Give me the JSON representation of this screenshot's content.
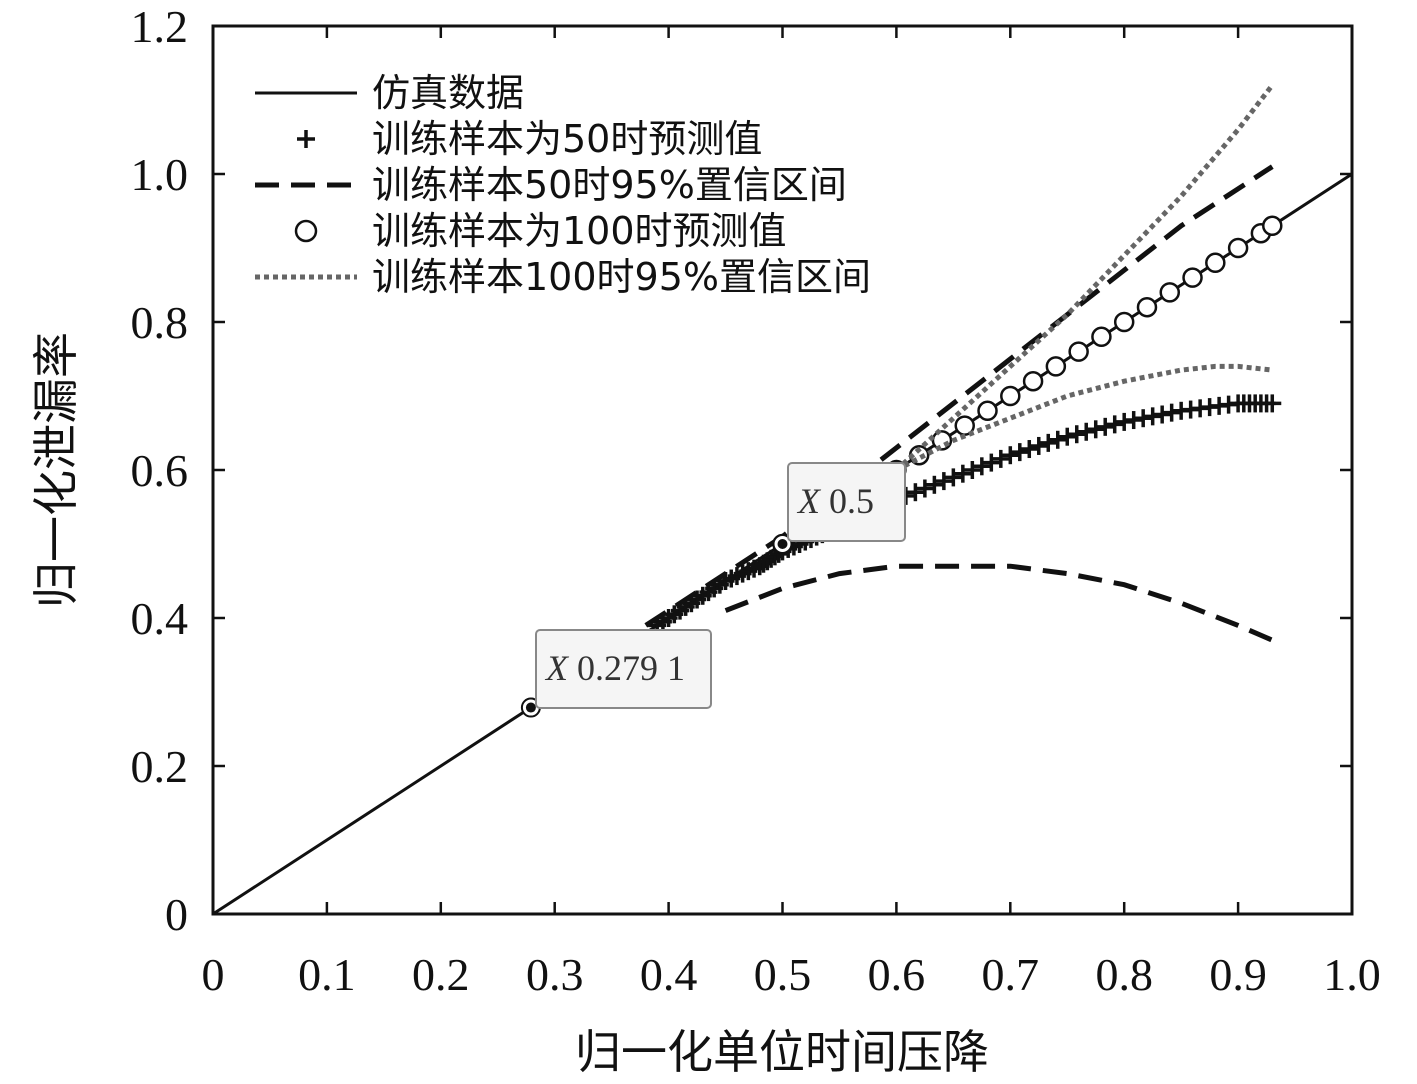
{
  "chart_data": {
    "type": "line",
    "title": "",
    "xlabel": "归一化单位时间压降",
    "ylabel": "归一化泄漏率",
    "xlim": [
      0,
      1.0
    ],
    "ylim": [
      0,
      1.2
    ],
    "xticks": [
      "0",
      "0.1",
      "0.2",
      "0.3",
      "0.4",
      "0.5",
      "0.6",
      "0.7",
      "0.8",
      "0.9",
      "1.0"
    ],
    "xtick_values": [
      0,
      0.1,
      0.2,
      0.3,
      0.4,
      0.5,
      0.6,
      0.7,
      0.8,
      0.9,
      1.0
    ],
    "yticks": [
      "0",
      "0.2",
      "0.4",
      "0.6",
      "0.8",
      "1.0",
      "1.2"
    ],
    "ytick_values": [
      0,
      0.2,
      0.4,
      0.6,
      0.8,
      1.0,
      1.2
    ],
    "legend_position": "top-left",
    "legend": [
      "仿真数据",
      "训练样本为50时预测值",
      "训练样本50时95%置信区间",
      "训练样本为100时预测值",
      "训练样本100时95%置信区间"
    ],
    "series": [
      {
        "name": "仿真数据",
        "style": "solid",
        "color": "#111111",
        "x": [
          0,
          0.1,
          0.2,
          0.3,
          0.4,
          0.5,
          0.6,
          0.7,
          0.8,
          0.9,
          1.0
        ],
        "y": [
          0,
          0.1,
          0.2,
          0.3,
          0.4,
          0.5,
          0.6,
          0.7,
          0.8,
          0.9,
          1.0
        ]
      },
      {
        "name": "训练样本为50时预测值",
        "style": "plus",
        "color": "#111111",
        "x": [
          0.28,
          0.39,
          0.42,
          0.45,
          0.48,
          0.5,
          0.53,
          0.56,
          0.6,
          0.65,
          0.7,
          0.75,
          0.8,
          0.85,
          0.9,
          0.93
        ],
        "y": [
          0.28,
          0.39,
          0.42,
          0.45,
          0.47,
          0.49,
          0.51,
          0.53,
          0.56,
          0.59,
          0.62,
          0.645,
          0.665,
          0.68,
          0.69,
          0.69
        ]
      },
      {
        "name": "训练样本50时95%置信区间",
        "style": "dashed",
        "color": "#111111",
        "upper_x": [
          0.38,
          0.45,
          0.5,
          0.55,
          0.6,
          0.65,
          0.7,
          0.75,
          0.8,
          0.85,
          0.9,
          0.93
        ],
        "upper_y": [
          0.39,
          0.46,
          0.51,
          0.57,
          0.63,
          0.69,
          0.75,
          0.81,
          0.87,
          0.93,
          0.98,
          1.01
        ],
        "lower_x": [
          0.45,
          0.5,
          0.55,
          0.6,
          0.65,
          0.7,
          0.75,
          0.8,
          0.85,
          0.9,
          0.93
        ],
        "lower_y": [
          0.41,
          0.44,
          0.46,
          0.47,
          0.47,
          0.47,
          0.46,
          0.445,
          0.42,
          0.39,
          0.37
        ]
      },
      {
        "name": "训练样本为100时预测值",
        "style": "circle",
        "color": "#111111",
        "x": [
          0.5,
          0.6,
          0.62,
          0.64,
          0.66,
          0.68,
          0.7,
          0.72,
          0.74,
          0.76,
          0.78,
          0.8,
          0.82,
          0.84,
          0.86,
          0.88,
          0.9,
          0.92,
          0.93
        ],
        "y": [
          0.5,
          0.6,
          0.62,
          0.64,
          0.66,
          0.68,
          0.7,
          0.72,
          0.74,
          0.76,
          0.78,
          0.8,
          0.82,
          0.84,
          0.86,
          0.88,
          0.9,
          0.92,
          0.93
        ]
      },
      {
        "name": "训练样本100时95%置信区间",
        "style": "dotted",
        "color": "#666666",
        "upper_x": [
          0.6,
          0.65,
          0.7,
          0.75,
          0.8,
          0.85,
          0.9,
          0.93
        ],
        "upper_y": [
          0.6,
          0.67,
          0.74,
          0.81,
          0.89,
          0.97,
          1.06,
          1.12
        ],
        "lower_x": [
          0.6,
          0.65,
          0.7,
          0.75,
          0.8,
          0.85,
          0.88,
          0.9,
          0.93
        ],
        "lower_y": [
          0.6,
          0.64,
          0.67,
          0.7,
          0.72,
          0.735,
          0.74,
          0.74,
          0.735
        ]
      }
    ],
    "annotations": [
      {
        "x": 0.2791,
        "y": 0.279,
        "label_prefix": "X",
        "label_value": "0.279 1"
      },
      {
        "x": 0.5,
        "y": 0.5,
        "label_prefix": "X",
        "label_value": "0.5"
      }
    ]
  }
}
